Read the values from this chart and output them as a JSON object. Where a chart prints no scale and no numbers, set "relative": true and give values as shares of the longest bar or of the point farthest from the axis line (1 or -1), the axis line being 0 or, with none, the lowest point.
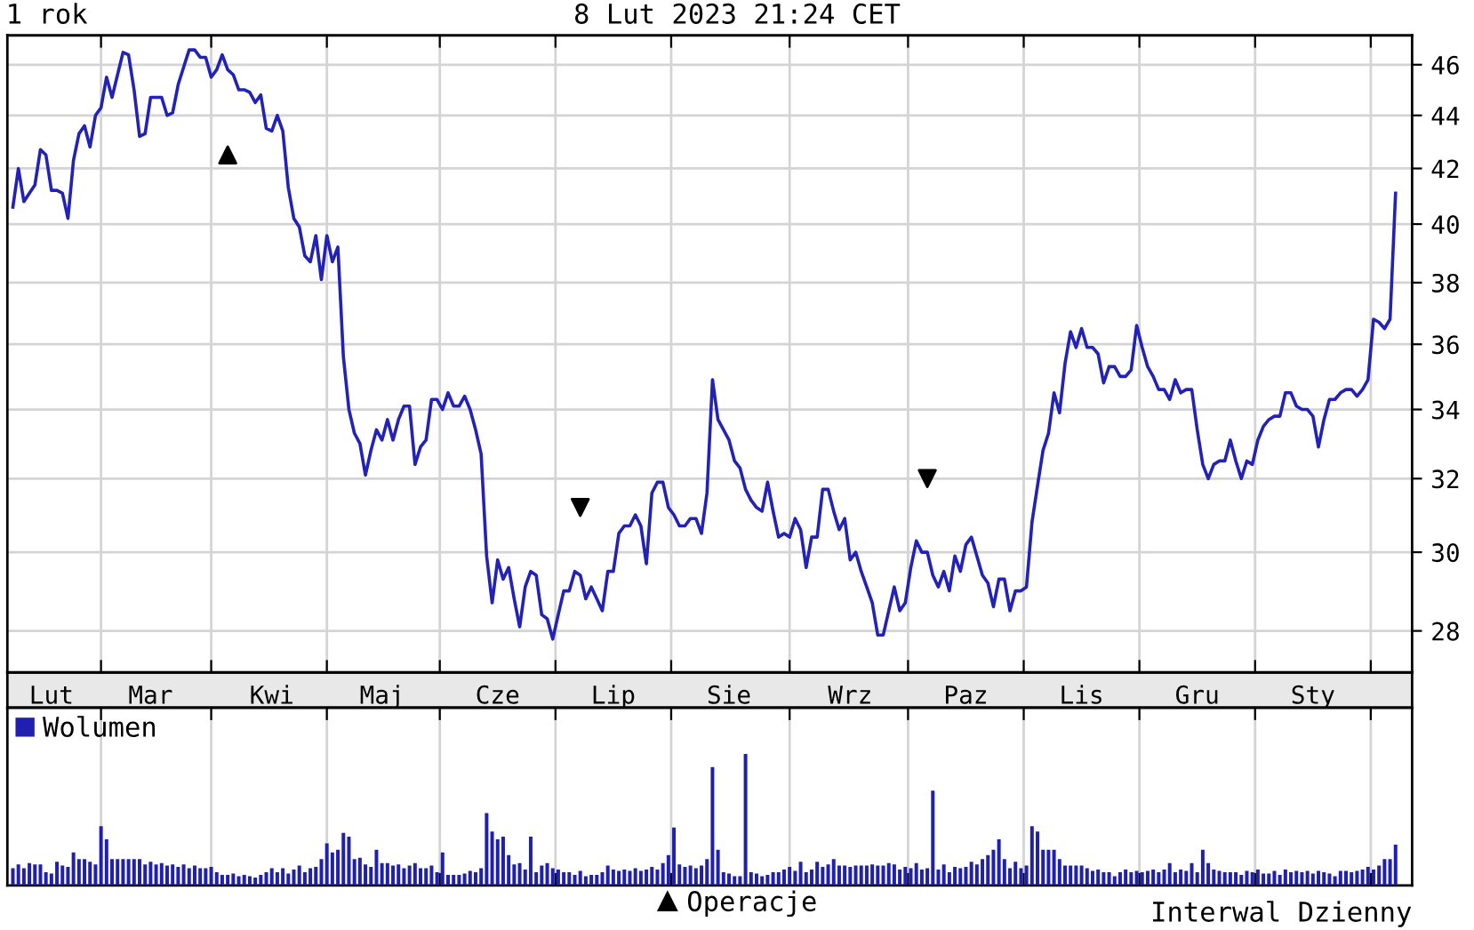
{
  "chart_data": [
    {
      "type": "line",
      "title": "1 rok",
      "subtitle": "8 Lut 2023 21:24 CET",
      "log": true,
      "grid": true,
      "legend": "bottom",
      "categories": [
        null,
        null,
        null,
        null,
        null,
        null,
        null,
        "Lut",
        null,
        null,
        null,
        null,
        null,
        null,
        null,
        null,
        null,
        null,
        null,
        null,
        null,
        null,
        null,
        null,
        null,
        "Mar",
        null,
        null,
        null,
        null,
        null,
        null,
        null,
        null,
        null,
        null,
        null,
        null,
        null,
        null,
        null,
        null,
        null,
        null,
        null,
        null,
        null,
        "Kwi",
        null,
        null,
        null,
        null,
        null,
        null,
        null,
        null,
        null,
        null,
        null,
        null,
        null,
        null,
        null,
        null,
        null,
        null,
        null,
        "Maj",
        null,
        null,
        null,
        null,
        null,
        null,
        null,
        null,
        null,
        null,
        null,
        null,
        null,
        null,
        null,
        null,
        null,
        null,
        null,
        null,
        "Cze",
        null,
        null,
        null,
        null,
        null,
        null,
        null,
        null,
        null,
        null,
        null,
        null,
        null,
        null,
        null,
        null,
        null,
        null,
        null,
        null,
        "Lip",
        null,
        null,
        null,
        null,
        null,
        null,
        null,
        null,
        null,
        null,
        null,
        null,
        null,
        null,
        null,
        null,
        null,
        null,
        null,
        null,
        "Sie",
        null,
        null,
        null,
        null,
        null,
        null,
        null,
        null,
        null,
        null,
        null,
        null,
        null,
        null,
        null,
        null,
        null,
        null,
        null,
        null,
        null,
        "Wrz",
        null,
        null,
        null,
        null,
        null,
        null,
        null,
        null,
        null,
        null,
        null,
        null,
        null,
        null,
        null,
        null,
        null,
        null,
        null,
        null,
        "Paz",
        null,
        null,
        null,
        null,
        null,
        null,
        null,
        null,
        null,
        null,
        null,
        null,
        null,
        null,
        null,
        null,
        null,
        null,
        null,
        null,
        "Lis",
        null,
        null,
        null,
        null,
        null,
        null,
        null,
        null,
        null,
        null,
        null,
        null,
        null,
        null,
        null,
        null,
        null,
        null,
        null,
        null,
        "Gru",
        null,
        null,
        null,
        null,
        null,
        null,
        null,
        null,
        null,
        null,
        null,
        null,
        null,
        null,
        null,
        null,
        null,
        null,
        null,
        null,
        "Sty",
        null,
        null,
        null,
        null,
        null,
        null,
        null,
        null,
        null,
        null,
        null,
        null,
        null,
        null,
        null
      ],
      "ylim": [
        27,
        47.2
      ],
      "yticks": [
        28,
        30,
        32,
        34,
        36,
        38,
        40,
        42,
        44,
        46
      ],
      "series": [
        {
          "color": "#2222bb",
          "line_style": "solid",
          "marker": "none",
          "values": [
            40.6,
            42.0,
            40.8,
            41.1,
            41.4,
            42.7,
            42.5,
            41.2,
            41.2,
            41.1,
            40.2,
            42.3,
            43.3,
            43.6,
            42.8,
            44.0,
            44.3,
            45.5,
            44.7,
            45.6,
            46.5,
            46.4,
            45.0,
            43.2,
            43.3,
            44.7,
            44.7,
            44.7,
            44.0,
            44.1,
            45.2,
            45.9,
            46.6,
            46.6,
            46.3,
            46.3,
            45.5,
            45.8,
            46.4,
            45.8,
            45.6,
            45.0,
            45.0,
            44.9,
            44.5,
            44.8,
            43.5,
            43.4,
            44.0,
            43.4,
            41.3,
            40.2,
            39.9,
            38.9,
            38.7,
            39.6,
            38.1,
            39.6,
            38.7,
            39.2,
            35.6,
            34.0,
            33.3,
            33.0,
            32.1,
            32.8,
            33.4,
            33.1,
            33.7,
            33.1,
            33.7,
            34.1,
            34.1,
            32.4,
            32.9,
            33.1,
            34.3,
            34.3,
            34.0,
            34.5,
            34.1,
            34.1,
            34.4,
            34.0,
            33.4,
            32.7,
            29.9,
            28.7,
            29.8,
            29.3,
            29.6,
            28.8,
            28.1,
            29.1,
            29.5,
            29.4,
            28.4,
            28.3,
            27.8,
            28.4,
            29.0,
            29.0,
            29.5,
            29.4,
            28.8,
            29.1,
            28.8,
            28.5,
            29.5,
            29.5,
            30.5,
            30.7,
            30.7,
            31.0,
            30.7,
            29.7,
            31.6,
            31.9,
            31.9,
            31.2,
            31.0,
            30.7,
            30.7,
            30.9,
            30.9,
            30.5,
            31.6,
            34.9,
            33.7,
            33.4,
            33.1,
            32.5,
            32.3,
            31.7,
            31.4,
            31.2,
            31.1,
            31.9,
            31.1,
            30.4,
            30.5,
            30.4,
            30.9,
            30.6,
            29.6,
            30.4,
            30.4,
            31.7,
            31.7,
            31.1,
            30.6,
            30.9,
            29.8,
            30.0,
            29.5,
            29.1,
            28.7,
            27.9,
            27.9,
            28.5,
            29.1,
            28.5,
            28.7,
            29.6,
            30.3,
            30.0,
            30.0,
            29.4,
            29.1,
            29.5,
            29.0,
            29.9,
            29.5,
            30.2,
            30.4,
            29.9,
            29.4,
            29.2,
            28.6,
            29.3,
            29.3,
            28.5,
            29.0,
            29.0,
            29.1,
            30.8,
            31.8,
            32.8,
            33.3,
            34.5,
            33.9,
            35.4,
            36.4,
            35.9,
            36.5,
            35.9,
            35.9,
            35.7,
            34.8,
            35.3,
            35.3,
            35.0,
            35.0,
            35.2,
            36.6,
            35.9,
            35.3,
            35.0,
            34.6,
            34.6,
            34.3,
            34.9,
            34.5,
            34.6,
            34.6,
            33.4,
            32.4,
            32.0,
            32.4,
            32.5,
            32.5,
            33.1,
            32.5,
            32.0,
            32.5,
            32.4,
            33.1,
            33.5,
            33.7,
            33.8,
            33.8,
            34.5,
            34.5,
            34.1,
            34.0,
            34.0,
            33.8,
            32.9,
            33.7,
            34.3,
            34.3,
            34.5,
            34.6,
            34.6,
            34.4,
            34.6,
            34.9,
            36.8,
            36.7,
            36.5,
            36.8,
            41.1
          ]
        },
        {
          "type": "scatter",
          "name": "Operacje",
          "marker": "triangle",
          "color": "#000000",
          "values": [
            null,
            null,
            null,
            null,
            null,
            null,
            null,
            null,
            null,
            null,
            null,
            null,
            null,
            null,
            null,
            null,
            null,
            null,
            null,
            null,
            null,
            null,
            null,
            null,
            null,
            null,
            null,
            null,
            null,
            null,
            null,
            null,
            null,
            null,
            null,
            null,
            null,
            null,
            null,
            42.5,
            null,
            null,
            null,
            null,
            null,
            null,
            null,
            null,
            null,
            null,
            null,
            null,
            null,
            null,
            null,
            null,
            null,
            null,
            null,
            null,
            null,
            null,
            null,
            null,
            null,
            null,
            null,
            null,
            null,
            null,
            null,
            null,
            null,
            null,
            null,
            null,
            null,
            null,
            null,
            null,
            null,
            null,
            null,
            null,
            null,
            null,
            null,
            null,
            null,
            null,
            null,
            null,
            null,
            null,
            null,
            null,
            null,
            null,
            null,
            null,
            null,
            null,
            null,
            null,
            null,
            null,
            null,
            null,
            null,
            null,
            null,
            null,
            null,
            null,
            null,
            null,
            null,
            null,
            null,
            null,
            null,
            null,
            null,
            null,
            null,
            null,
            null,
            null,
            null,
            null,
            null,
            null,
            null,
            null,
            null,
            null,
            null,
            null,
            null,
            null,
            null,
            null,
            null,
            null,
            null,
            null,
            null,
            null,
            null,
            null,
            null,
            null,
            null,
            null,
            null,
            null,
            null,
            null,
            null,
            null,
            null,
            null,
            null,
            null,
            null,
            null,
            null,
            null,
            null,
            null,
            null,
            null,
            null,
            null,
            null,
            null,
            null,
            null,
            null,
            null,
            null,
            null,
            null,
            null,
            null,
            null,
            null,
            null,
            null,
            null,
            null,
            null,
            null,
            null,
            null,
            null,
            null,
            null,
            null,
            null,
            null,
            null,
            null,
            null,
            null,
            null,
            null,
            null,
            null,
            null,
            null,
            null,
            null,
            null,
            null,
            null,
            null,
            null,
            null,
            null,
            null,
            null,
            null,
            null,
            null,
            null,
            null,
            null,
            null,
            null,
            null,
            null,
            null,
            null,
            null,
            null,
            null,
            null,
            null,
            null,
            null,
            null,
            null,
            null,
            null,
            null,
            null,
            null,
            null,
            null,
            null,
            null
          ]
        },
        {
          "type": "scatter",
          "marker": "triangle_down",
          "color": "#000000",
          "values": [
            null,
            null,
            null,
            null,
            null,
            null,
            null,
            null,
            null,
            null,
            null,
            null,
            null,
            null,
            null,
            null,
            null,
            null,
            null,
            null,
            null,
            null,
            null,
            null,
            null,
            null,
            null,
            null,
            null,
            null,
            null,
            null,
            null,
            null,
            null,
            null,
            null,
            null,
            null,
            null,
            null,
            null,
            null,
            null,
            null,
            null,
            null,
            null,
            null,
            null,
            null,
            null,
            null,
            null,
            null,
            null,
            null,
            null,
            null,
            null,
            null,
            null,
            null,
            null,
            null,
            null,
            null,
            null,
            null,
            null,
            null,
            null,
            null,
            null,
            null,
            null,
            null,
            null,
            null,
            null,
            null,
            null,
            null,
            null,
            null,
            null,
            null,
            null,
            null,
            null,
            null,
            null,
            null,
            null,
            null,
            null,
            null,
            null,
            null,
            null,
            null,
            null,
            null,
            31.2,
            null,
            null,
            null,
            null,
            null,
            null,
            null,
            null,
            null,
            null,
            null,
            null,
            null,
            null,
            null,
            null,
            null,
            null,
            null,
            null,
            null,
            null,
            null,
            null,
            null,
            null,
            null,
            null,
            null,
            null,
            null,
            null,
            null,
            null,
            null,
            null,
            null,
            null,
            null,
            null,
            null,
            null,
            null,
            null,
            null,
            null,
            null,
            null,
            null,
            null,
            null,
            null,
            null,
            null,
            null,
            null,
            null,
            null,
            null,
            null,
            null,
            null,
            32.0,
            null,
            null,
            null,
            null,
            null,
            null,
            null,
            null,
            null,
            null,
            null,
            null,
            null,
            null,
            null,
            null,
            null,
            null,
            null,
            null,
            null,
            null,
            null,
            null,
            null,
            null,
            null,
            null,
            null,
            null,
            null,
            null,
            null,
            null,
            null,
            null,
            null,
            null,
            null,
            null,
            null,
            null,
            null,
            null,
            null,
            null,
            null,
            null,
            null,
            null,
            null,
            null,
            null,
            null,
            null,
            null,
            null,
            null,
            null,
            null,
            null,
            null,
            null,
            null,
            null,
            null,
            null,
            null,
            null,
            null,
            null,
            null,
            null,
            null,
            null,
            null,
            null,
            null,
            null,
            null,
            null,
            null,
            null,
            null,
            null
          ]
        }
      ]
    },
    {
      "type": "bar",
      "relative": true,
      "grid": "x",
      "legend": "top left",
      "tick_labels": false,
      "annotations": [
        "Interwal Dzienny"
      ],
      "categories": [
        null,
        null,
        null,
        null,
        null,
        null,
        null,
        null,
        null,
        null,
        null,
        null,
        null,
        null,
        null,
        null,
        null,
        null,
        null,
        null,
        null,
        null,
        null,
        null,
        null,
        null,
        null,
        null,
        null,
        null,
        null,
        null,
        null,
        null,
        null,
        null,
        null,
        null,
        null,
        null,
        null,
        null,
        null,
        null,
        null,
        null,
        null,
        null,
        null,
        null,
        null,
        null,
        null,
        null,
        null,
        null,
        null,
        null,
        null,
        null,
        null,
        null,
        null,
        null,
        null,
        null,
        null,
        null,
        null,
        null,
        null,
        null,
        null,
        null,
        null,
        null,
        null,
        null,
        null,
        null,
        null,
        null,
        null,
        null,
        null,
        null,
        null,
        null,
        null,
        null,
        null,
        null,
        null,
        null,
        null,
        null,
        null,
        null,
        null,
        null,
        null,
        null,
        null,
        null,
        null,
        null,
        null,
        null,
        null,
        null,
        null,
        null,
        null,
        null,
        null,
        null,
        null,
        null,
        null,
        null,
        null,
        null,
        null,
        null,
        null,
        null,
        null,
        null,
        null,
        null,
        null,
        null,
        null,
        null,
        null,
        null,
        null,
        null,
        null,
        null,
        null,
        null,
        null,
        null,
        null,
        null,
        null,
        null,
        null,
        null,
        null,
        null,
        null,
        null,
        null,
        null,
        null,
        null,
        null,
        null,
        null,
        null,
        null,
        null,
        null,
        null,
        null,
        null,
        null,
        null,
        null,
        null,
        null,
        null,
        null,
        null,
        null,
        null,
        null,
        null,
        null,
        null,
        null,
        null,
        null,
        null,
        null,
        null,
        null,
        null,
        null,
        null,
        null,
        null,
        null,
        null,
        null,
        null,
        null,
        null,
        null,
        null,
        null,
        null,
        null,
        null,
        null,
        null,
        null,
        null,
        null,
        null,
        null,
        null,
        null,
        null,
        null,
        null,
        null,
        null,
        null,
        null,
        null,
        null,
        null,
        null,
        null,
        null,
        null,
        null,
        null,
        null,
        null,
        null,
        null,
        null,
        null,
        null,
        null,
        null,
        null,
        null,
        null,
        null,
        null,
        null,
        null,
        null,
        null,
        null,
        null,
        null
      ],
      "series": [
        {
          "name": "Wolumen",
          "color": "#2020b0",
          "values": [
            0.13,
            0.16,
            0.13,
            0.17,
            0.16,
            0.16,
            0.1,
            0.09,
            0.18,
            0.15,
            0.14,
            0.25,
            0.2,
            0.2,
            0.18,
            0.16,
            0.45,
            0.35,
            0.2,
            0.2,
            0.2,
            0.2,
            0.2,
            0.2,
            0.16,
            0.18,
            0.16,
            0.17,
            0.15,
            0.16,
            0.14,
            0.16,
            0.13,
            0.15,
            0.13,
            0.13,
            0.14,
            0.1,
            0.08,
            0.08,
            0.09,
            0.07,
            0.08,
            0.07,
            0.06,
            0.08,
            0.1,
            0.13,
            0.1,
            0.13,
            0.09,
            0.12,
            0.15,
            0.1,
            0.13,
            0.14,
            0.2,
            0.32,
            0.25,
            0.27,
            0.4,
            0.37,
            0.2,
            0.21,
            0.16,
            0.14,
            0.27,
            0.17,
            0.17,
            0.15,
            0.16,
            0.13,
            0.15,
            0.17,
            0.13,
            0.13,
            0.15,
            0.1,
            0.25,
            0.08,
            0.08,
            0.08,
            0.09,
            0.11,
            0.1,
            0.13,
            0.55,
            0.41,
            0.35,
            0.37,
            0.23,
            0.16,
            0.17,
            0.12,
            0.37,
            0.1,
            0.15,
            0.17,
            0.13,
            0.12,
            0.1,
            0.1,
            0.08,
            0.11,
            0.07,
            0.08,
            0.08,
            0.1,
            0.15,
            0.12,
            0.11,
            0.12,
            0.11,
            0.13,
            0.11,
            0.12,
            0.14,
            0.12,
            0.17,
            0.23,
            0.44,
            0.16,
            0.14,
            0.15,
            0.13,
            0.15,
            0.2,
            0.9,
            0.27,
            0.1,
            0.09,
            0.07,
            0.07,
            1.0,
            0.1,
            0.09,
            0.07,
            0.08,
            0.1,
            0.1,
            0.12,
            0.14,
            0.11,
            0.18,
            0.1,
            0.12,
            0.18,
            0.14,
            0.16,
            0.2,
            0.15,
            0.15,
            0.14,
            0.15,
            0.15,
            0.15,
            0.16,
            0.15,
            0.15,
            0.17,
            0.16,
            0.12,
            0.14,
            0.13,
            0.17,
            0.12,
            0.13,
            0.72,
            0.12,
            0.16,
            0.1,
            0.14,
            0.13,
            0.14,
            0.18,
            0.16,
            0.2,
            0.23,
            0.27,
            0.35,
            0.2,
            0.13,
            0.18,
            0.13,
            0.15,
            0.45,
            0.41,
            0.27,
            0.27,
            0.27,
            0.2,
            0.15,
            0.15,
            0.15,
            0.15,
            0.13,
            0.11,
            0.12,
            0.1,
            0.1,
            0.07,
            0.1,
            0.12,
            0.1,
            0.11,
            0.1,
            0.11,
            0.12,
            0.1,
            0.12,
            0.17,
            0.1,
            0.12,
            0.11,
            0.17,
            0.1,
            0.27,
            0.17,
            0.12,
            0.11,
            0.1,
            0.1,
            0.1,
            0.08,
            0.11,
            0.1,
            0.12,
            0.09,
            0.09,
            0.11,
            0.08,
            0.12,
            0.1,
            0.11,
            0.1,
            0.11,
            0.09,
            0.11,
            0.1,
            0.09,
            0.07,
            0.11,
            0.11,
            0.1,
            0.11,
            0.12,
            0.14,
            0.12,
            0.15,
            0.2,
            0.2,
            0.31
          ]
        }
      ]
    }
  ]
}
